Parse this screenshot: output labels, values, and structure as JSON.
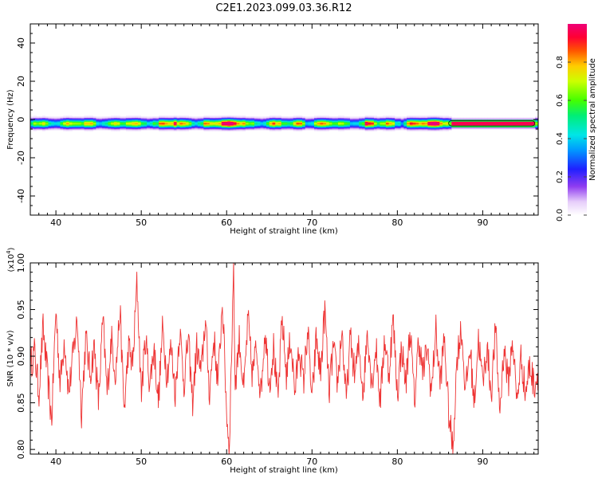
{
  "figure": {
    "title": "C2E1.2023.099.03.36.R12"
  },
  "chart_data": [
    {
      "type": "heatmap",
      "title": "C2E1.2023.099.03.36.R12",
      "xlabel": "Height of straight line (km)",
      "ylabel": "Frequency (Hz)",
      "xlim": [
        37,
        96.5
      ],
      "ylim": [
        -50,
        50
      ],
      "xticks": [
        40,
        50,
        60,
        70,
        80,
        90
      ],
      "xtick_labels": [
        "40",
        "50",
        "60",
        "70",
        "80",
        "90"
      ],
      "yticks": [
        -40,
        -20,
        0,
        20,
        40
      ],
      "ytick_labels": [
        "-40",
        "-20",
        "0",
        "20",
        "40"
      ],
      "signal_band_hz": [
        -3,
        1
      ],
      "signal_center_hz": -2,
      "strong_segments_km": [
        [
          52,
          54
        ],
        [
          57,
          62
        ],
        [
          68,
          69
        ],
        [
          76,
          77
        ],
        [
          81,
          96
        ]
      ],
      "peak_region_km": [
        86,
        96
      ],
      "colorbar": {
        "label": "Normalized spectral amplitude",
        "range": [
          0,
          1
        ],
        "ticks": [
          0.0,
          0.2,
          0.4,
          0.6,
          0.8
        ],
        "tick_labels": [
          "0.0",
          "0.2",
          "0.4",
          "0.6",
          "0.8"
        ],
        "colormap": "rainbow (white-purple-blue-cyan-green-yellow-red-magenta)"
      }
    },
    {
      "type": "line",
      "xlabel": "Height of straight line (km)",
      "ylabel": "SNR (10 * v/v)",
      "scale_label": "(x10",
      "scale_exp": "4",
      "scale_close": ")",
      "xlim": [
        37,
        96.5
      ],
      "ylim": [
        0.795,
        1.0
      ],
      "xticks": [
        40,
        50,
        60,
        70,
        80,
        90
      ],
      "xtick_labels": [
        "40",
        "50",
        "60",
        "70",
        "80",
        "90"
      ],
      "yticks": [
        0.8,
        0.85,
        0.9,
        0.95,
        1.0
      ],
      "ytick_labels": [
        "0.80",
        "0.85",
        "0.90",
        "0.95",
        "1.00"
      ],
      "series": [
        {
          "color": "#ee3333",
          "mean": 0.89,
          "spread": 0.03,
          "x_range": [
            37,
            96.5
          ],
          "points": [
            [
              37.0,
              0.89
            ],
            [
              37.5,
              0.905
            ],
            [
              38.0,
              0.86
            ],
            [
              38.5,
              0.93
            ],
            [
              39.0,
              0.88
            ],
            [
              39.5,
              0.83
            ],
            [
              40.0,
              0.95
            ],
            [
              40.5,
              0.87
            ],
            [
              41.0,
              0.92
            ],
            [
              41.5,
              0.86
            ],
            [
              42.0,
              0.9
            ],
            [
              42.5,
              0.94
            ],
            [
              43.0,
              0.84
            ],
            [
              43.5,
              0.92
            ],
            [
              44.0,
              0.88
            ],
            [
              44.5,
              0.91
            ],
            [
              45.0,
              0.85
            ],
            [
              45.5,
              0.94
            ],
            [
              46.0,
              0.86
            ],
            [
              46.5,
              0.92
            ],
            [
              47.0,
              0.88
            ],
            [
              47.5,
              0.95
            ],
            [
              48.0,
              0.84
            ],
            [
              48.5,
              0.91
            ],
            [
              49.0,
              0.89
            ],
            [
              49.5,
              0.98
            ],
            [
              50.0,
              0.86
            ],
            [
              50.5,
              0.92
            ],
            [
              51.0,
              0.87
            ],
            [
              51.5,
              0.91
            ],
            [
              52.0,
              0.85
            ],
            [
              52.5,
              0.93
            ],
            [
              53.0,
              0.88
            ],
            [
              53.5,
              0.91
            ],
            [
              54.0,
              0.86
            ],
            [
              54.5,
              0.93
            ],
            [
              55.0,
              0.87
            ],
            [
              55.5,
              0.92
            ],
            [
              56.0,
              0.85
            ],
            [
              56.5,
              0.91
            ],
            [
              57.0,
              0.88
            ],
            [
              57.5,
              0.94
            ],
            [
              58.0,
              0.86
            ],
            [
              58.5,
              0.92
            ],
            [
              59.0,
              0.87
            ],
            [
              59.5,
              0.96
            ],
            [
              60.0,
              0.84
            ],
            [
              60.3,
              0.8
            ],
            [
              60.6,
              0.91
            ],
            [
              60.8,
              1.0
            ],
            [
              61.0,
              0.87
            ],
            [
              61.5,
              0.92
            ],
            [
              62.0,
              0.86
            ],
            [
              62.5,
              0.94
            ],
            [
              63.0,
              0.88
            ],
            [
              63.5,
              0.91
            ],
            [
              64.0,
              0.86
            ],
            [
              64.5,
              0.93
            ],
            [
              65.0,
              0.87
            ],
            [
              65.5,
              0.91
            ],
            [
              66.0,
              0.85
            ],
            [
              66.5,
              0.94
            ],
            [
              67.0,
              0.88
            ],
            [
              67.5,
              0.92
            ],
            [
              68.0,
              0.86
            ],
            [
              68.5,
              0.91
            ],
            [
              69.0,
              0.87
            ],
            [
              69.5,
              0.93
            ],
            [
              70.0,
              0.85
            ],
            [
              70.5,
              0.92
            ],
            [
              71.0,
              0.88
            ],
            [
              71.5,
              0.95
            ],
            [
              72.0,
              0.86
            ],
            [
              72.5,
              0.91
            ],
            [
              73.0,
              0.87
            ],
            [
              73.5,
              0.93
            ],
            [
              74.0,
              0.85
            ],
            [
              74.5,
              0.92
            ],
            [
              75.0,
              0.88
            ],
            [
              75.5,
              0.91
            ],
            [
              76.0,
              0.86
            ],
            [
              76.5,
              0.93
            ],
            [
              77.0,
              0.87
            ],
            [
              77.5,
              0.91
            ],
            [
              78.0,
              0.85
            ],
            [
              78.5,
              0.92
            ],
            [
              79.0,
              0.88
            ],
            [
              79.5,
              0.94
            ],
            [
              80.0,
              0.86
            ],
            [
              80.5,
              0.91
            ],
            [
              81.0,
              0.87
            ],
            [
              81.5,
              0.93
            ],
            [
              82.0,
              0.85
            ],
            [
              82.5,
              0.92
            ],
            [
              83.0,
              0.88
            ],
            [
              83.5,
              0.91
            ],
            [
              84.0,
              0.86
            ],
            [
              84.5,
              0.93
            ],
            [
              85.0,
              0.87
            ],
            [
              85.5,
              0.92
            ],
            [
              86.0,
              0.84
            ],
            [
              86.5,
              0.8
            ],
            [
              87.0,
              0.9
            ],
            [
              87.5,
              0.93
            ],
            [
              88.0,
              0.86
            ],
            [
              88.5,
              0.91
            ],
            [
              89.0,
              0.85
            ],
            [
              89.5,
              0.92
            ],
            [
              90.0,
              0.87
            ],
            [
              90.5,
              0.91
            ],
            [
              91.0,
              0.86
            ],
            [
              91.5,
              0.93
            ],
            [
              92.0,
              0.84
            ],
            [
              92.5,
              0.91
            ],
            [
              93.0,
              0.87
            ],
            [
              93.5,
              0.92
            ],
            [
              94.0,
              0.85
            ],
            [
              94.5,
              0.9
            ],
            [
              95.0,
              0.86
            ],
            [
              95.5,
              0.89
            ],
            [
              96.0,
              0.87
            ],
            [
              96.5,
              0.88
            ]
          ]
        }
      ]
    }
  ]
}
